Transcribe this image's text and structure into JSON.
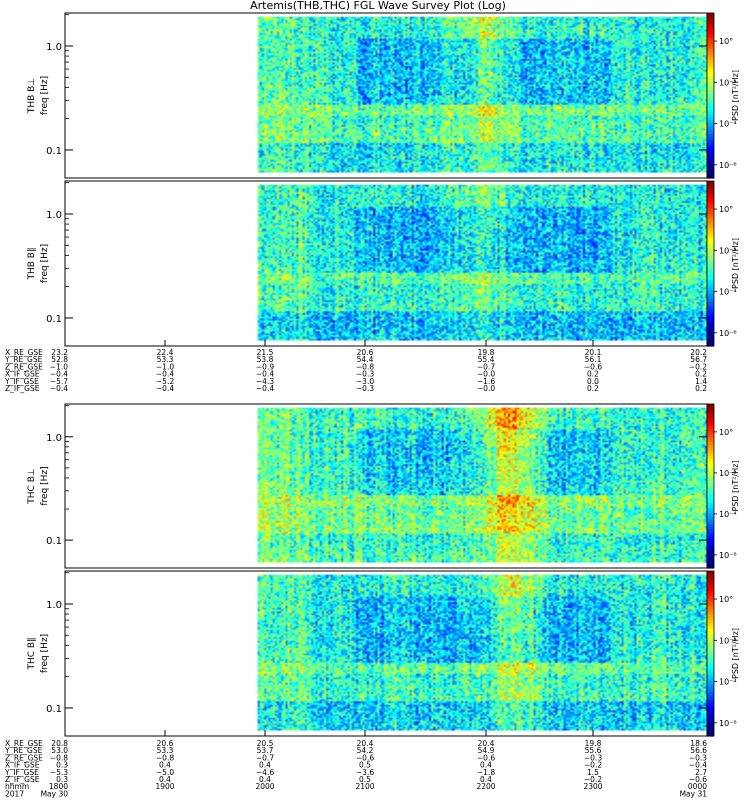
{
  "title": "Artemis(THB,THC) FGL Wave Survey Plot (Log)",
  "chart_data": {
    "type": "heatmap",
    "colorbar": {
      "label": "PSD [nT²/Hz]",
      "tick_labels": [
        "10°",
        "10⁻²",
        "10⁻⁴",
        "10⁻⁶"
      ],
      "scale": "log"
    },
    "panels": [
      {
        "ylabel_line1": "THB B⊥",
        "ylabel_line2": "freq [Hz]",
        "yticks": [
          "1.0",
          "0.1"
        ],
        "yscale": "log",
        "spectrogram": {
          "data_start_frac": 0.3,
          "quiet_until_frac": 0.33,
          "active_region": [
            0.58,
            0.72
          ],
          "activity": 0.35,
          "overall": 0.15,
          "low_band": 0.22
        }
      },
      {
        "ylabel_line1": "THB B∥",
        "ylabel_line2": "freq [Hz]",
        "yticks": [
          "1.0",
          "0.1"
        ],
        "yscale": "log",
        "spectrogram": {
          "data_start_frac": 0.3,
          "quiet_until_frac": 0.33,
          "active_region": [
            0.58,
            0.72
          ],
          "activity": 0.25,
          "overall": 0.05,
          "low_band": 0.1
        }
      },
      {
        "ylabel_line1": "THC B⊥",
        "ylabel_line2": "freq [Hz]",
        "yticks": [
          "1.0",
          "0.1"
        ],
        "yscale": "log",
        "spectrogram": {
          "data_start_frac": 0.3,
          "quiet_until_frac": 0.33,
          "active_region": [
            0.62,
            0.76
          ],
          "activity": 0.7,
          "overall": 0.3,
          "low_band": 0.3
        }
      },
      {
        "ylabel_line1": "THC B∥",
        "ylabel_line2": "freq [Hz]",
        "yticks": [
          "1.0",
          "0.1"
        ],
        "yscale": "log",
        "spectrogram": {
          "data_start_frac": 0.3,
          "quiet_until_frac": 0.33,
          "active_region": [
            0.64,
            0.76
          ],
          "activity": 0.5,
          "overall": 0.1,
          "low_band": 0.15
        }
      }
    ],
    "orbit_blocks": [
      {
        "rows": [
          {
            "label": "X_RE_GSE",
            "values": [
              "23.2",
              "22.4",
              "21.5",
              "20.6",
              "19.8",
              "20.1",
              "20.2"
            ]
          },
          {
            "label": "Y_RE_GSE",
            "values": [
              "52.8",
              "53.3",
              "53.8",
              "54.4",
              "55.4",
              "56.1",
              "56.7"
            ]
          },
          {
            "label": "Z_RE_GSE",
            "values": [
              "−1.0",
              "−1.0",
              "−0.9",
              "−0.8",
              "−0.7",
              "−0.6",
              "−0.2"
            ]
          },
          {
            "label": "X_IF_GSE",
            "values": [
              "−0.4",
              "−0.4",
              "−0.4",
              "−0.3",
              "−0.0",
              "0.2",
              "0.2"
            ]
          },
          {
            "label": "Y_IF_GSE",
            "values": [
              "−5.7",
              "−5.2",
              "−4.3",
              "−3.0",
              "−1.6",
              "0.0",
              "1.4"
            ]
          },
          {
            "label": "Z_IF_GSE",
            "values": [
              "−0.4",
              "−0.4",
              "−0.4",
              "−0.3",
              "−0.0",
              "0.2",
              "0.2"
            ]
          }
        ]
      },
      {
        "rows": [
          {
            "label": "X_RE_GSE",
            "values": [
              "20.8",
              "20.6",
              "20.5",
              "20.4",
              "20.4",
              "19.8",
              "18.6"
            ]
          },
          {
            "label": "Y_RE_GSE",
            "values": [
              "53.0",
              "53.3",
              "53.7",
              "54.2",
              "54.9",
              "55.6",
              "56.6"
            ]
          },
          {
            "label": "Z_RE_GSE",
            "values": [
              "−0.8",
              "−0.8",
              "−0.7",
              "−0.6",
              "−0.6",
              "−0.3",
              "−0.3"
            ]
          },
          {
            "label": "X_IF_GSE",
            "values": [
              "0.3",
              "0.4",
              "0.4",
              "0.5",
              "0.4",
              "−0.2",
              "−0.4"
            ]
          },
          {
            "label": "Y_IF_GSE",
            "values": [
              "−5.3",
              "−5.0",
              "−4.6",
              "−3.6",
              "−1.8",
              "1.5",
              "2.7"
            ]
          },
          {
            "label": "Z_IF_GSE",
            "values": [
              "0.3",
              "0.4",
              "0.4",
              "0.5",
              "0.4",
              "−0.2",
              "−0.6"
            ]
          },
          {
            "label": "hhmm",
            "values": [
              "1800",
              "1900",
              "2000",
              "2100",
              "2200",
              "2300",
              "0000"
            ]
          },
          {
            "label": "2017",
            "values": [
              "May 30",
              "",
              "",
              "",
              "",
              "",
              "May 31"
            ]
          }
        ]
      }
    ]
  }
}
